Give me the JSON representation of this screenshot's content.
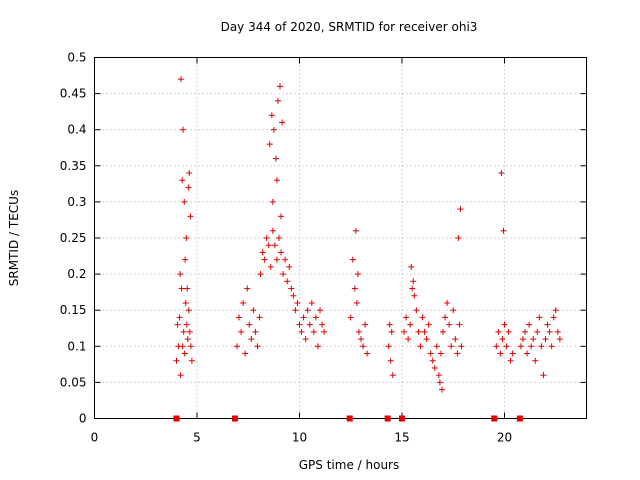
{
  "chart_data": {
    "type": "scatter",
    "title": "Day 344 of 2020, SRMTID for receiver ohi3",
    "xlabel": "GPS time / hours",
    "ylabel": "SRMTID / TECUs",
    "xlim": [
      0,
      24
    ],
    "ylim": [
      0,
      0.5
    ],
    "grid": true,
    "xticks": [
      0,
      5,
      10,
      15,
      20
    ],
    "xtick_labels": [
      "0",
      "5",
      "10",
      "15",
      "20"
    ],
    "yticks": [
      0,
      0.05,
      0.1,
      0.15,
      0.2,
      0.25,
      0.3,
      0.35,
      0.4,
      0.45,
      0.5
    ],
    "ytick_labels": [
      "0",
      "0.05",
      "0.1",
      "0.15",
      "0.2",
      "0.25",
      "0.3",
      "0.35",
      "0.4",
      "0.45",
      "0.5"
    ],
    "marker_color": "#e00000",
    "zero_markers_x": [
      4.0,
      6.85,
      12.45,
      14.3,
      15.0,
      19.5,
      20.75
    ],
    "series": [
      {
        "name": "SRMTID",
        "x": [
          4.0,
          4.1,
          4.15,
          4.2,
          4.25,
          4.3,
          4.35,
          4.4,
          4.45,
          4.5,
          4.55,
          4.6,
          4.65,
          4.7,
          4.75,
          4.05,
          4.18,
          4.28,
          4.38,
          4.48,
          4.58,
          4.68,
          4.22,
          4.32,
          4.42,
          4.52,
          4.62,
          6.95,
          7.05,
          7.15,
          7.25,
          7.35,
          7.45,
          7.55,
          7.65,
          7.75,
          7.85,
          7.95,
          8.05,
          8.1,
          8.2,
          8.3,
          8.4,
          8.5,
          8.6,
          8.7,
          8.8,
          8.9,
          9.0,
          9.1,
          9.2,
          9.3,
          9.4,
          9.5,
          9.6,
          8.55,
          8.65,
          8.75,
          8.85,
          8.95,
          9.05,
          9.15,
          8.7,
          8.9,
          9.1,
          9.7,
          9.8,
          9.9,
          10.0,
          10.1,
          10.2,
          10.3,
          10.4,
          10.5,
          10.6,
          10.7,
          10.8,
          10.9,
          11.0,
          11.1,
          11.2,
          12.5,
          12.6,
          12.7,
          12.8,
          12.9,
          13.0,
          13.1,
          13.2,
          13.3,
          12.75,
          12.85,
          14.35,
          14.45,
          14.55,
          14.4,
          14.5,
          15.1,
          15.2,
          15.3,
          15.4,
          15.5,
          15.6,
          15.7,
          15.8,
          15.9,
          16.0,
          16.1,
          16.2,
          16.3,
          16.4,
          16.5,
          16.6,
          16.7,
          16.8,
          16.9,
          17.0,
          17.1,
          17.2,
          17.3,
          17.4,
          17.5,
          17.6,
          17.7,
          17.8,
          17.9,
          15.45,
          15.55,
          16.85,
          16.95,
          17.75,
          17.85,
          19.6,
          19.7,
          19.8,
          19.9,
          20.0,
          20.1,
          20.2,
          20.3,
          20.4,
          19.85,
          19.95,
          20.8,
          20.9,
          21.0,
          21.1,
          21.2,
          21.3,
          21.4,
          21.5,
          21.6,
          21.7,
          21.8,
          21.9,
          22.0,
          22.1,
          22.2,
          22.3,
          22.4,
          22.5,
          22.6,
          22.7
        ],
        "y": [
          0.08,
          0.1,
          0.14,
          0.06,
          0.18,
          0.1,
          0.12,
          0.09,
          0.16,
          0.13,
          0.11,
          0.15,
          0.12,
          0.1,
          0.08,
          0.13,
          0.2,
          0.33,
          0.3,
          0.25,
          0.32,
          0.28,
          0.47,
          0.4,
          0.22,
          0.18,
          0.34,
          0.1,
          0.14,
          0.12,
          0.16,
          0.09,
          0.18,
          0.13,
          0.11,
          0.15,
          0.12,
          0.1,
          0.14,
          0.2,
          0.23,
          0.22,
          0.25,
          0.24,
          0.21,
          0.26,
          0.24,
          0.22,
          0.25,
          0.23,
          0.2,
          0.22,
          0.19,
          0.21,
          0.18,
          0.38,
          0.42,
          0.4,
          0.36,
          0.44,
          0.46,
          0.41,
          0.3,
          0.33,
          0.28,
          0.17,
          0.15,
          0.16,
          0.13,
          0.12,
          0.14,
          0.11,
          0.15,
          0.13,
          0.16,
          0.12,
          0.14,
          0.1,
          0.15,
          0.13,
          0.12,
          0.14,
          0.22,
          0.18,
          0.16,
          0.12,
          0.11,
          0.1,
          0.13,
          0.09,
          0.26,
          0.2,
          0.1,
          0.08,
          0.06,
          0.13,
          0.12,
          0.12,
          0.14,
          0.11,
          0.13,
          0.18,
          0.17,
          0.15,
          0.12,
          0.1,
          0.14,
          0.12,
          0.11,
          0.13,
          0.09,
          0.08,
          0.07,
          0.1,
          0.06,
          0.09,
          0.12,
          0.14,
          0.16,
          0.13,
          0.1,
          0.15,
          0.11,
          0.09,
          0.13,
          0.1,
          0.21,
          0.19,
          0.05,
          0.04,
          0.25,
          0.29,
          0.1,
          0.12,
          0.09,
          0.11,
          0.13,
          0.1,
          0.12,
          0.08,
          0.09,
          0.34,
          0.26,
          0.1,
          0.11,
          0.12,
          0.09,
          0.13,
          0.1,
          0.11,
          0.08,
          0.12,
          0.14,
          0.1,
          0.06,
          0.11,
          0.13,
          0.12,
          0.1,
          0.14,
          0.15,
          0.12,
          0.11
        ]
      }
    ]
  }
}
